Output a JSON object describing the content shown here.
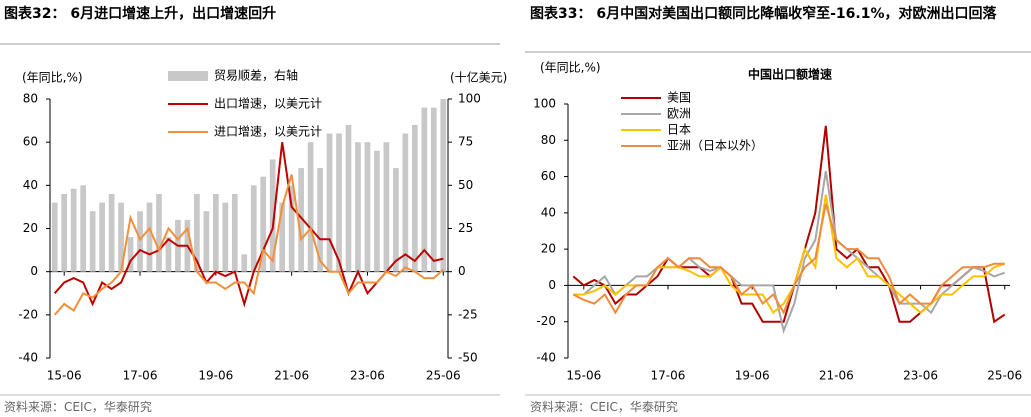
{
  "chart_data": [
    {
      "type": "combo",
      "title": "图表32： 6月进口增速上升，出口增速回升",
      "y_label": "(年同比,%)",
      "y2_label": "(十亿美元)",
      "source": "资料来源：CEIC，华泰研究",
      "categories": [
        null,
        "15-06",
        null,
        null,
        null,
        null,
        null,
        null,
        null,
        "17-06",
        null,
        null,
        null,
        null,
        null,
        null,
        null,
        "19-06",
        null,
        null,
        null,
        null,
        null,
        null,
        null,
        "21-06",
        null,
        null,
        null,
        null,
        null,
        null,
        null,
        "23-06",
        null,
        null,
        null,
        null,
        null,
        null,
        null,
        "25-06"
      ],
      "ylim": [
        -40,
        80
      ],
      "yticks": [
        -40,
        -20,
        0,
        20,
        40,
        60,
        80
      ],
      "y2lim": [
        -50,
        100
      ],
      "y2ticks": [
        -50,
        -25,
        0,
        25,
        50,
        75,
        100
      ],
      "series": [
        {
          "name": "贸易顺差，右轴",
          "color": "#c8c8c8",
          "axis": "y2",
          "values": [
            40,
            45,
            48,
            50,
            35,
            40,
            45,
            40,
            20,
            35,
            40,
            45,
            20,
            30,
            30,
            45,
            35,
            45,
            40,
            45,
            10,
            50,
            55,
            65,
            40,
            50,
            60,
            75,
            60,
            80,
            80,
            85,
            75,
            75,
            70,
            75,
            60,
            80,
            85,
            95,
            95,
            100
          ]
        },
        {
          "name": "出口增速，以美元计",
          "color": "#c00000",
          "values": [
            -10,
            -5,
            -3,
            -5,
            -15,
            -5,
            -8,
            -5,
            5,
            10,
            8,
            10,
            15,
            12,
            12,
            5,
            -5,
            0,
            -2,
            0,
            -15,
            0,
            10,
            20,
            60,
            30,
            25,
            20,
            15,
            15,
            5,
            -10,
            0,
            -10,
            -5,
            0,
            5,
            8,
            5,
            10,
            5,
            6
          ]
        },
        {
          "name": "进口增速，以美元计",
          "color": "#f0903a",
          "values": [
            -20,
            -15,
            -18,
            -10,
            -12,
            -8,
            -5,
            0,
            25,
            15,
            20,
            10,
            20,
            15,
            20,
            0,
            -5,
            -5,
            -8,
            -5,
            -5,
            -10,
            10,
            5,
            30,
            45,
            15,
            20,
            5,
            0,
            0,
            -10,
            -5,
            -5,
            -5,
            0,
            -2,
            2,
            0,
            -3,
            -3,
            1
          ]
        }
      ]
    },
    {
      "type": "line",
      "title": "图表33： 6月中国对美国出口额同比降幅收窄至-16.1%，对欧洲出口回落",
      "subtitle": "中国出口额增速",
      "y_label": "(年同比,%)",
      "source": "资料来源：CEIC，华泰研究",
      "categories": [
        null,
        "15-06",
        null,
        null,
        null,
        null,
        null,
        null,
        null,
        "17-06",
        null,
        null,
        null,
        null,
        null,
        null,
        null,
        "19-06",
        null,
        null,
        null,
        null,
        null,
        null,
        null,
        "21-06",
        null,
        null,
        null,
        null,
        null,
        null,
        null,
        "23-06",
        null,
        null,
        null,
        null,
        null,
        null,
        null,
        "25-06"
      ],
      "ylim": [
        -40,
        100
      ],
      "yticks": [
        -40,
        -20,
        0,
        20,
        40,
        60,
        80,
        100
      ],
      "series": [
        {
          "name": "美国",
          "color": "#b00000",
          "values": [
            5,
            0,
            3,
            0,
            -10,
            -5,
            -5,
            0,
            5,
            15,
            10,
            10,
            10,
            5,
            10,
            5,
            -10,
            -10,
            -20,
            -20,
            -20,
            0,
            20,
            40,
            88,
            20,
            15,
            20,
            10,
            10,
            0,
            -20,
            -20,
            -15,
            -10,
            0,
            0,
            5,
            10,
            10,
            -20,
            -16.1
          ]
        },
        {
          "name": "欧洲",
          "color": "#a6a6a6",
          "values": [
            -5,
            -5,
            0,
            5,
            -5,
            0,
            5,
            5,
            10,
            10,
            10,
            15,
            10,
            8,
            10,
            5,
            0,
            0,
            0,
            0,
            -25,
            -10,
            15,
            25,
            63,
            25,
            20,
            15,
            10,
            5,
            0,
            -10,
            -10,
            -10,
            -15,
            -5,
            0,
            5,
            10,
            8,
            5,
            7
          ]
        },
        {
          "name": "日本",
          "color": "#ffc000",
          "values": [
            -5,
            -5,
            -3,
            0,
            -5,
            0,
            0,
            0,
            10,
            10,
            10,
            8,
            5,
            5,
            10,
            0,
            -5,
            -5,
            -5,
            -15,
            -10,
            0,
            20,
            10,
            50,
            15,
            10,
            15,
            5,
            5,
            0,
            -5,
            -10,
            -15,
            -10,
            -5,
            -5,
            0,
            5,
            5,
            10,
            12
          ]
        },
        {
          "name": "亚洲（日本以外）",
          "color": "#f08a3c",
          "values": [
            -5,
            -8,
            -10,
            -5,
            -15,
            -5,
            0,
            0,
            10,
            15,
            10,
            15,
            15,
            10,
            10,
            5,
            -5,
            0,
            -10,
            -5,
            -15,
            0,
            10,
            15,
            45,
            25,
            20,
            20,
            15,
            15,
            5,
            -10,
            -5,
            -10,
            -10,
            0,
            5,
            10,
            10,
            10,
            12,
            12
          ]
        }
      ]
    }
  ]
}
